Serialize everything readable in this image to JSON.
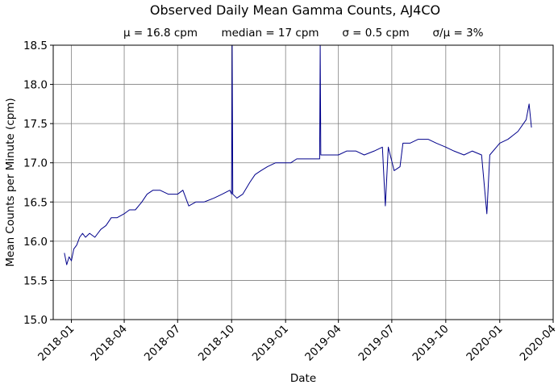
{
  "chart_data": {
    "type": "line",
    "title": "Observed Daily Mean Gamma Counts, AJ4CO",
    "subtitle": {
      "mean": "μ = 16.8 cpm",
      "median": "median = 17 cpm",
      "sigma": "σ = 0.5 cpm",
      "ratio": "σ/μ = 3%"
    },
    "xlabel": "Date",
    "ylabel": "Mean Counts per Minute (cpm)",
    "ylim": [
      15.0,
      18.5
    ],
    "xlim": [
      "2017-12-01",
      "2020-04-01"
    ],
    "yticks": [
      "15.0",
      "15.5",
      "16.0",
      "16.5",
      "17.0",
      "17.5",
      "18.0",
      "18.5"
    ],
    "xticks": [
      "2018-01",
      "2018-04",
      "2018-07",
      "2018-10",
      "2019-01",
      "2019-04",
      "2019-07",
      "2019-10",
      "2020-01",
      "2020-04"
    ],
    "grid": true,
    "line_color": "#00008b",
    "series": [
      {
        "points": [
          [
            "2017-12-20",
            15.85
          ],
          [
            "2017-12-24",
            15.7
          ],
          [
            "2017-12-28",
            15.8
          ],
          [
            "2018-01-01",
            15.75
          ],
          [
            "2018-01-05",
            15.9
          ],
          [
            "2018-01-10",
            15.95
          ],
          [
            "2018-01-15",
            16.05
          ],
          [
            "2018-01-20",
            16.1
          ],
          [
            "2018-01-25",
            16.05
          ],
          [
            "2018-02-01",
            16.1
          ],
          [
            "2018-02-10",
            16.05
          ],
          [
            "2018-02-20",
            16.15
          ],
          [
            "2018-03-01",
            16.2
          ],
          [
            "2018-03-10",
            16.3
          ],
          [
            "2018-03-20",
            16.3
          ],
          [
            "2018-04-01",
            16.35
          ],
          [
            "2018-04-10",
            16.4
          ],
          [
            "2018-04-20",
            16.4
          ],
          [
            "2018-05-01",
            16.5
          ],
          [
            "2018-05-10",
            16.6
          ],
          [
            "2018-05-20",
            16.65
          ],
          [
            "2018-06-01",
            16.65
          ],
          [
            "2018-06-15",
            16.6
          ],
          [
            "2018-07-01",
            16.6
          ],
          [
            "2018-07-10",
            16.65
          ],
          [
            "2018-07-20",
            16.45
          ],
          [
            "2018-08-01",
            16.5
          ],
          [
            "2018-08-15",
            16.5
          ],
          [
            "2018-09-01",
            16.55
          ],
          [
            "2018-09-15",
            16.6
          ],
          [
            "2018-09-28",
            16.65
          ],
          [
            "2018-10-01",
            16.6
          ],
          [
            "2018-10-02",
            18.5
          ],
          [
            "2018-10-03",
            16.6
          ],
          [
            "2018-10-10",
            16.55
          ],
          [
            "2018-10-20",
            16.6
          ],
          [
            "2018-11-01",
            16.75
          ],
          [
            "2018-11-10",
            16.85
          ],
          [
            "2018-11-20",
            16.9
          ],
          [
            "2018-12-01",
            16.95
          ],
          [
            "2018-12-15",
            17.0
          ],
          [
            "2018-12-28",
            17.0
          ],
          [
            "2019-01-10",
            17.0
          ],
          [
            "2019-01-20",
            17.05
          ],
          [
            "2019-02-01",
            17.05
          ],
          [
            "2019-02-15",
            17.05
          ],
          [
            "2019-02-28",
            17.05
          ],
          [
            "2019-03-01",
            18.5
          ],
          [
            "2019-03-02",
            17.1
          ],
          [
            "2019-03-15",
            17.1
          ],
          [
            "2019-04-01",
            17.1
          ],
          [
            "2019-04-15",
            17.15
          ],
          [
            "2019-05-01",
            17.15
          ],
          [
            "2019-05-15",
            17.1
          ],
          [
            "2019-06-01",
            17.15
          ],
          [
            "2019-06-15",
            17.2
          ],
          [
            "2019-06-20",
            16.45
          ],
          [
            "2019-06-25",
            17.2
          ],
          [
            "2019-07-05",
            16.9
          ],
          [
            "2019-07-15",
            16.95
          ],
          [
            "2019-07-20",
            17.25
          ],
          [
            "2019-08-01",
            17.25
          ],
          [
            "2019-08-15",
            17.3
          ],
          [
            "2019-09-01",
            17.3
          ],
          [
            "2019-09-15",
            17.25
          ],
          [
            "2019-10-01",
            17.2
          ],
          [
            "2019-10-15",
            17.15
          ],
          [
            "2019-11-01",
            17.1
          ],
          [
            "2019-11-15",
            17.15
          ],
          [
            "2019-12-01",
            17.1
          ],
          [
            "2019-12-10",
            16.35
          ],
          [
            "2019-12-15",
            17.1
          ],
          [
            "2020-01-01",
            17.25
          ],
          [
            "2020-01-15",
            17.3
          ],
          [
            "2020-02-01",
            17.4
          ],
          [
            "2020-02-15",
            17.55
          ],
          [
            "2020-02-20",
            17.75
          ],
          [
            "2020-02-24",
            17.45
          ]
        ]
      }
    ]
  }
}
